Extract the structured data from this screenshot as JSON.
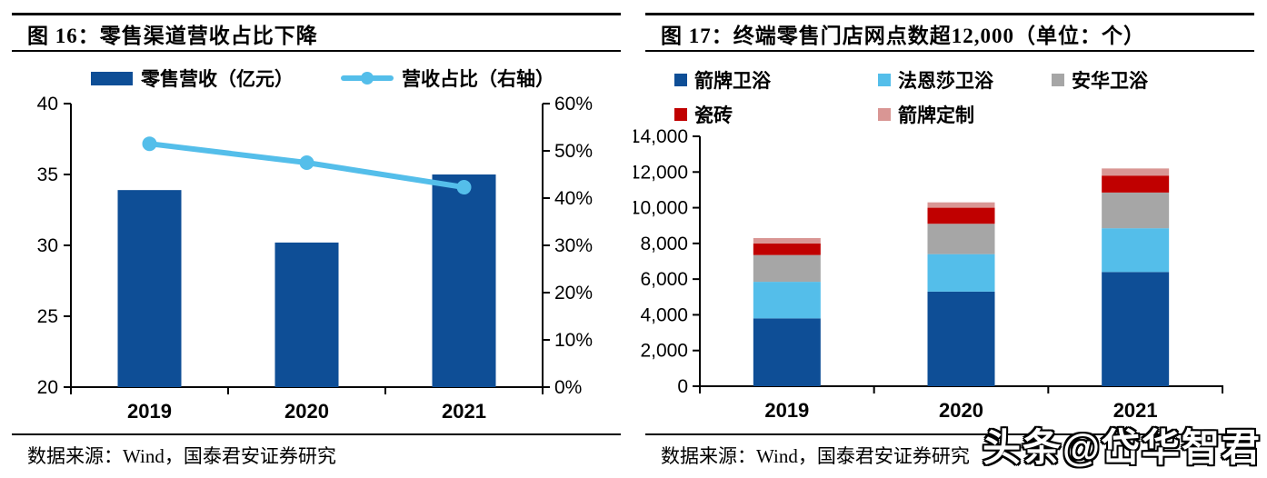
{
  "watermark": "头条@岱华智君",
  "figures": [
    {
      "title": "图 16：零售渠道营收占比下降",
      "source": "数据来源：Wind，国泰君安证券研究",
      "chart_data": {
        "type": "bar+line",
        "categories": [
          "2019",
          "2020",
          "2021"
        ],
        "series": [
          {
            "name": "零售营收（亿元）",
            "type": "bar",
            "axis": "left",
            "color": "#0E4E96",
            "values": [
              33.9,
              30.2,
              35.0
            ]
          },
          {
            "name": "营收占比（右轴）",
            "type": "line",
            "axis": "right",
            "color": "#54BEEA",
            "values": [
              51.5,
              47.5,
              42.3
            ]
          }
        ],
        "left_axis": {
          "min": 20,
          "max": 40,
          "step": 5,
          "ticks": [
            "40",
            "35",
            "30",
            "25",
            "20"
          ]
        },
        "right_axis": {
          "min": 0,
          "max": 60,
          "step": 10,
          "ticks": [
            "60%",
            "50%",
            "40%",
            "30%",
            "20%",
            "10%",
            "0%"
          ]
        },
        "legend_position": "top",
        "grid": false
      }
    },
    {
      "title": "图 17：终端零售门店网点数超12,000（单位：个）",
      "source": "数据来源：Wind，国泰君安证券研究",
      "chart_data": {
        "type": "stacked-bar",
        "categories": [
          "2019",
          "2020",
          "2021"
        ],
        "series": [
          {
            "name": "箭牌卫浴",
            "color": "#0E4E96",
            "values": [
              3800,
              5300,
              6400
            ]
          },
          {
            "name": "法恩莎卫浴",
            "color": "#54BEEA",
            "values": [
              2050,
              2100,
              2450
            ]
          },
          {
            "name": "安华卫浴",
            "color": "#A6A6A6",
            "values": [
              1500,
              1700,
              2000
            ]
          },
          {
            "name": "瓷砖",
            "color": "#C00000",
            "values": [
              650,
              900,
              950
            ]
          },
          {
            "name": "箭牌定制",
            "color": "#D99694",
            "values": [
              300,
              300,
              400
            ]
          }
        ],
        "totals": [
          8300,
          10300,
          12200
        ],
        "y_axis": {
          "min": 0,
          "max": 14000,
          "step": 2000,
          "ticks": [
            "14,000",
            "12,000",
            "10,000",
            "8,000",
            "6,000",
            "4,000",
            "2,000",
            "0"
          ]
        },
        "legend_position": "top",
        "grid": false
      }
    }
  ]
}
